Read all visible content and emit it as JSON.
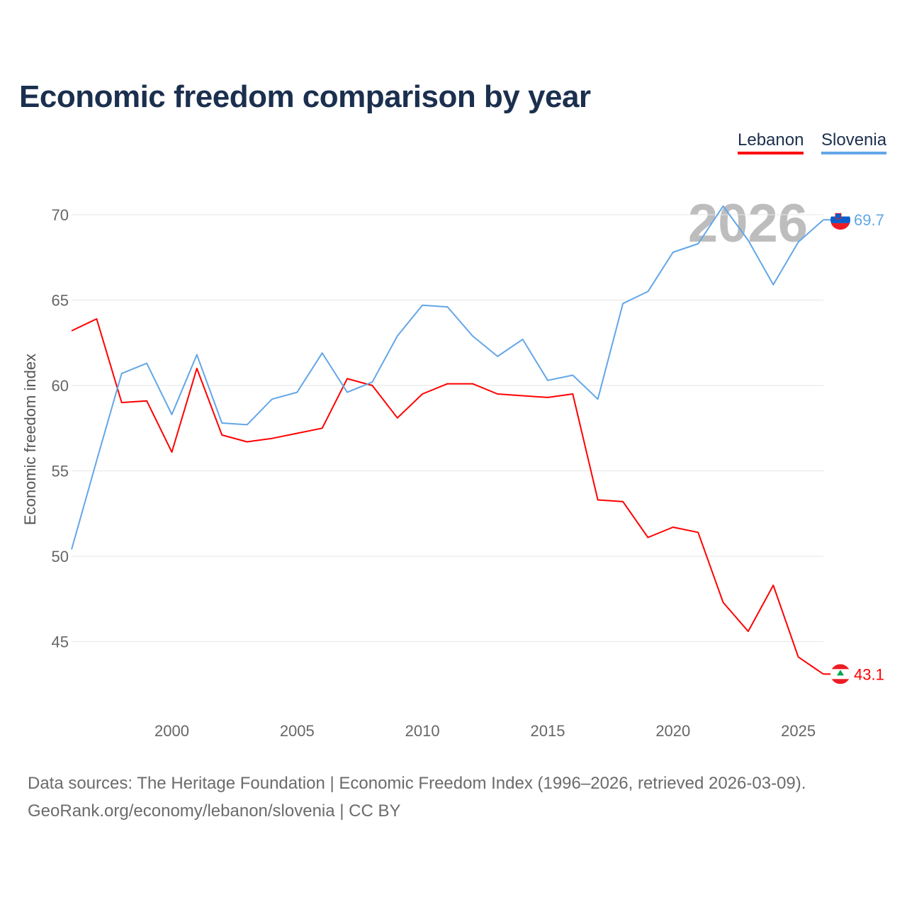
{
  "title": "Economic freedom comparison by year",
  "legend": [
    {
      "label": "Lebanon",
      "color": "#ff0000"
    },
    {
      "label": "Slovenia",
      "color": "#63a6e8"
    }
  ],
  "year_overlay": "2026",
  "footer": {
    "line1": "Data sources: The Heritage Foundation | Economic Freedom Index (1996–2026, retrieved 2026-03-09).",
    "line2": "GeoRank.org/economy/lebanon/slovenia | CC BY"
  },
  "chart_data": {
    "type": "line",
    "title": "Economic freedom comparison by year",
    "xlabel": "",
    "ylabel": "Economic freedom index",
    "xlim": [
      1996,
      2026
    ],
    "ylim": [
      41,
      72
    ],
    "yticks": [
      45,
      50,
      55,
      60,
      65,
      70
    ],
    "xticks": [
      2000,
      2005,
      2010,
      2015,
      2020,
      2025
    ],
    "grid": true,
    "legend_position": "top-right",
    "x": [
      1996,
      1997,
      1998,
      1999,
      2000,
      2001,
      2002,
      2003,
      2004,
      2005,
      2006,
      2007,
      2008,
      2009,
      2010,
      2011,
      2012,
      2013,
      2014,
      2015,
      2016,
      2017,
      2018,
      2019,
      2020,
      2021,
      2022,
      2023,
      2024,
      2025,
      2026
    ],
    "series": [
      {
        "name": "Lebanon",
        "color": "#ff0000",
        "end_label": "43.1",
        "values": [
          63.2,
          63.9,
          59.0,
          59.1,
          56.1,
          61.0,
          57.1,
          56.7,
          56.9,
          57.2,
          57.5,
          60.4,
          60.0,
          58.1,
          59.5,
          60.1,
          60.1,
          59.5,
          59.4,
          59.3,
          59.5,
          53.3,
          53.2,
          51.1,
          51.7,
          51.4,
          47.3,
          45.6,
          48.3,
          44.1,
          43.1
        ]
      },
      {
        "name": "Slovenia",
        "color": "#63a6e8",
        "end_label": "69.7",
        "values": [
          50.4,
          55.6,
          60.7,
          61.3,
          58.3,
          61.8,
          57.8,
          57.7,
          59.2,
          59.6,
          61.9,
          59.6,
          60.2,
          62.9,
          64.7,
          64.6,
          62.9,
          61.7,
          62.7,
          60.3,
          60.6,
          59.2,
          64.8,
          65.5,
          67.8,
          68.3,
          70.5,
          68.5,
          65.9,
          68.4,
          69.7
        ]
      }
    ]
  }
}
